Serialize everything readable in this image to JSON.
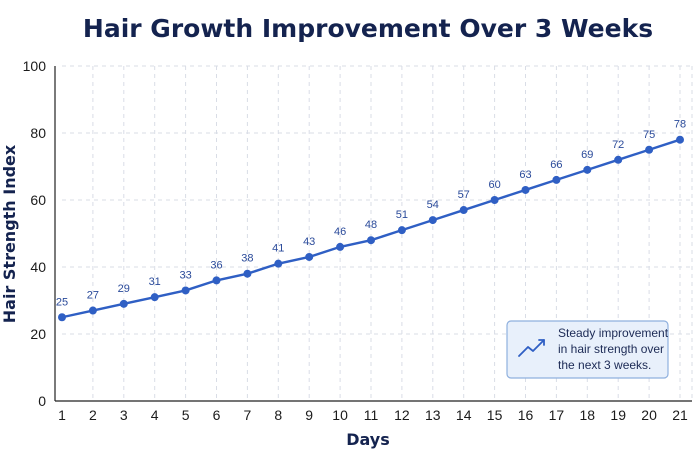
{
  "chart_data": {
    "type": "line",
    "title": "Hair Growth Improvement Over 3 Weeks",
    "xlabel": "Days",
    "ylabel": "Hair Strength Index",
    "x": [
      1,
      2,
      3,
      4,
      5,
      6,
      7,
      8,
      9,
      10,
      11,
      12,
      13,
      14,
      15,
      16,
      17,
      18,
      19,
      20,
      21
    ],
    "values": [
      25,
      27,
      29,
      31,
      33,
      36,
      38,
      41,
      43,
      46,
      48,
      51,
      54,
      57,
      60,
      63,
      66,
      69,
      72,
      75,
      78
    ],
    "xlim": [
      1,
      21
    ],
    "ylim": [
      0,
      100
    ],
    "yticks": [
      0,
      20,
      40,
      60,
      80,
      100
    ],
    "grid": true,
    "line_color": "#2f5fc4",
    "annotation": {
      "lines": [
        "Steady improvement",
        "in hair strength over",
        "the next 3 weeks."
      ],
      "icon": "trend-up-icon",
      "placement": "bottom-right"
    }
  }
}
